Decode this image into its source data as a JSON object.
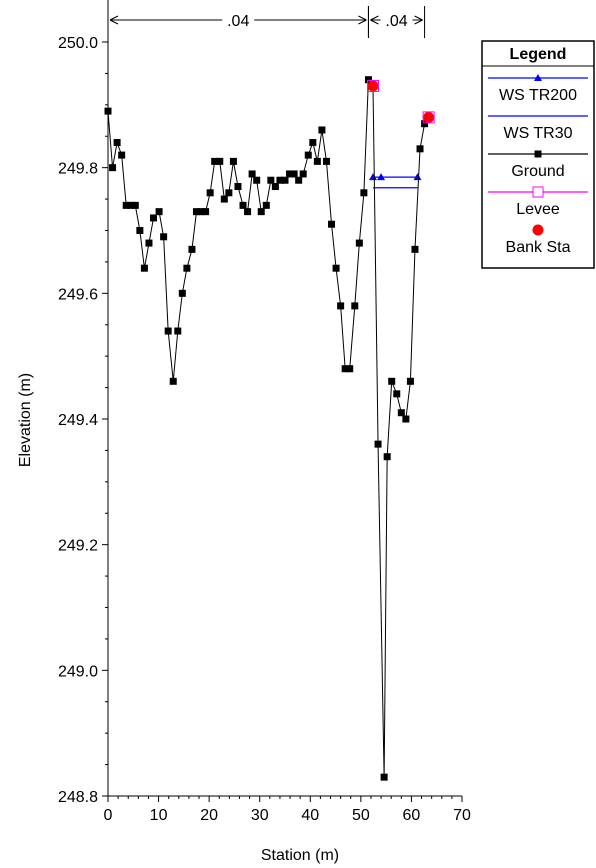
{
  "chart_data": {
    "type": "line",
    "xlabel": "Station (m)",
    "ylabel": "Elevation (m)",
    "xlim": [
      0,
      70
    ],
    "ylim": [
      248.8,
      250.0
    ],
    "x_ticks": [
      0,
      10,
      20,
      30,
      40,
      50,
      60,
      70
    ],
    "y_ticks": [
      248.8,
      249.0,
      249.2,
      249.4,
      249.6,
      249.8,
      250.0
    ],
    "x_tick_labels": [
      "0",
      "10",
      "20",
      "30",
      "40",
      "50",
      "60",
      "70"
    ],
    "y_tick_labels": [
      "248.8",
      "249.0",
      "249.2",
      "249.4",
      "249.6",
      "249.8",
      "250.0"
    ],
    "colors": {
      "ws_tr200": "#0000ff",
      "ws_tr30": "#0000ff",
      "ground": "#000000",
      "levee": "#ff00ff",
      "bank_sta": "#ff0000"
    },
    "series": [
      {
        "name": "Ground",
        "points": [
          [
            0,
            249.89
          ],
          [
            0.9,
            249.8
          ],
          [
            1.8,
            249.84
          ],
          [
            2.7,
            249.82
          ],
          [
            3.6,
            249.74
          ],
          [
            4.5,
            249.74
          ],
          [
            5.4,
            249.74
          ],
          [
            6.3,
            249.7
          ],
          [
            7.2,
            249.64
          ],
          [
            8.1,
            249.68
          ],
          [
            9.0,
            249.72
          ],
          [
            10.1,
            249.73
          ],
          [
            11.0,
            249.69
          ],
          [
            11.9,
            249.54
          ],
          [
            12.9,
            249.46
          ],
          [
            13.8,
            249.54
          ],
          [
            14.7,
            249.6
          ],
          [
            15.6,
            249.64
          ],
          [
            16.6,
            249.67
          ],
          [
            17.5,
            249.73
          ],
          [
            18.4,
            249.73
          ],
          [
            19.3,
            249.73
          ],
          [
            20.2,
            249.76
          ],
          [
            21.1,
            249.81
          ],
          [
            22.1,
            249.81
          ],
          [
            23.0,
            249.75
          ],
          [
            23.9,
            249.76
          ],
          [
            24.8,
            249.81
          ],
          [
            25.7,
            249.77
          ],
          [
            26.7,
            249.74
          ],
          [
            27.6,
            249.73
          ],
          [
            28.5,
            249.79
          ],
          [
            29.4,
            249.78
          ],
          [
            30.3,
            249.73
          ],
          [
            31.3,
            249.74
          ],
          [
            32.2,
            249.78
          ],
          [
            33.1,
            249.77
          ],
          [
            34.0,
            249.78
          ],
          [
            35.0,
            249.78
          ],
          [
            35.9,
            249.79
          ],
          [
            36.8,
            249.79
          ],
          [
            37.7,
            249.78
          ],
          [
            38.6,
            249.79
          ],
          [
            39.6,
            249.82
          ],
          [
            40.5,
            249.84
          ],
          [
            41.4,
            249.81
          ],
          [
            42.3,
            249.86
          ],
          [
            43.2,
            249.81
          ],
          [
            44.2,
            249.71
          ],
          [
            45.1,
            249.64
          ],
          [
            46.0,
            249.58
          ],
          [
            46.9,
            249.48
          ],
          [
            47.8,
            249.48
          ],
          [
            48.8,
            249.58
          ],
          [
            49.7,
            249.68
          ],
          [
            50.6,
            249.76
          ],
          [
            51.5,
            249.94
          ],
          [
            52.4,
            249.93
          ],
          [
            53.4,
            249.36
          ],
          [
            54.6,
            248.83
          ],
          [
            55.2,
            249.34
          ],
          [
            56.1,
            249.46
          ],
          [
            57.1,
            249.44
          ],
          [
            58.0,
            249.41
          ],
          [
            58.9,
            249.4
          ],
          [
            59.8,
            249.46
          ],
          [
            60.7,
            249.67
          ],
          [
            61.7,
            249.83
          ],
          [
            62.6,
            249.87
          ],
          [
            63.4,
            249.88
          ]
        ]
      },
      {
        "name": "WS TR200",
        "points": [
          [
            52.4,
            249.785
          ],
          [
            54.0,
            249.785
          ],
          [
            61.2,
            249.785
          ]
        ]
      },
      {
        "name": "WS TR30",
        "points": [
          [
            52.4,
            249.768
          ],
          [
            61.2,
            249.768
          ]
        ]
      },
      {
        "name": "Levee",
        "points": [
          [
            52.4,
            249.93
          ],
          [
            63.4,
            249.88
          ]
        ]
      },
      {
        "name": "Bank Sta",
        "points": [
          [
            52.4,
            249.93
          ],
          [
            63.4,
            249.88
          ]
        ]
      }
    ],
    "manning_n": [
      {
        "label": ".04",
        "from": 0,
        "to": 51.5
      },
      {
        "label": ".04",
        "from": 51.5,
        "to": 62.6
      }
    ],
    "legend": {
      "title": "Legend",
      "placement": "top-right",
      "entries": [
        "WS TR200",
        "WS TR30",
        "Ground",
        "Levee",
        "Bank Sta"
      ]
    },
    "grid": false
  }
}
